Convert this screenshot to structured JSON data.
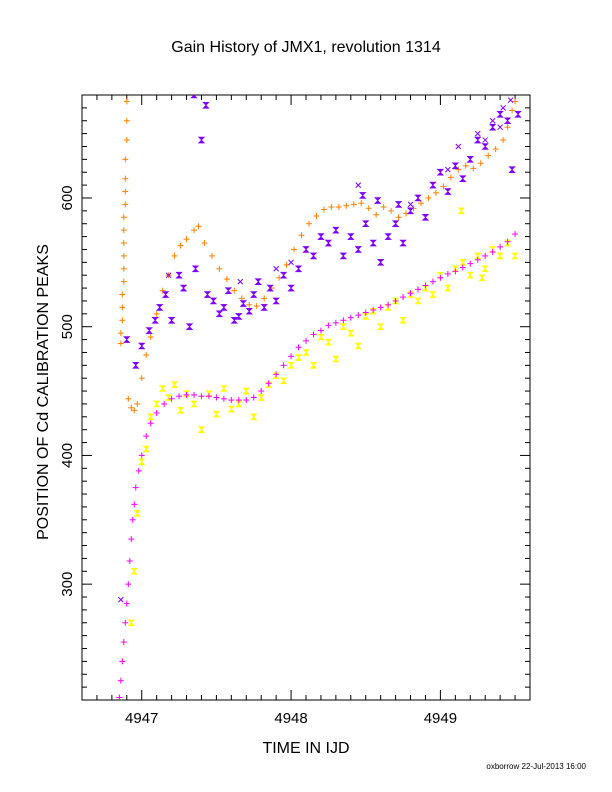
{
  "chart_data": {
    "type": "scatter",
    "title": "Gain History of JMX1, revolution 1314",
    "xlabel": "TIME IN IJD",
    "ylabel": "POSITION OF Cd CALIBRATION PEAKS",
    "xlim": [
      4946.6,
      4949.6
    ],
    "ylim": [
      210,
      680
    ],
    "xticks": [
      4947,
      4948,
      4949
    ],
    "yticks": [
      300,
      400,
      500,
      600
    ],
    "grid": false,
    "footer": "oxborrow 22-Jul-2013 16:00",
    "series": [
      {
        "marker": "plus",
        "color": "#ff8000",
        "values": [
          [
            4946.86,
            487
          ],
          [
            4946.86,
            495
          ],
          [
            4946.87,
            505
          ],
          [
            4946.87,
            515
          ],
          [
            4946.87,
            525
          ],
          [
            4946.88,
            535
          ],
          [
            4946.88,
            545
          ],
          [
            4946.88,
            555
          ],
          [
            4946.88,
            565
          ],
          [
            4946.88,
            575
          ],
          [
            4946.88,
            585
          ],
          [
            4946.89,
            595
          ],
          [
            4946.89,
            605
          ],
          [
            4946.89,
            615
          ],
          [
            4946.89,
            630
          ],
          [
            4946.9,
            645
          ],
          [
            4946.9,
            660
          ],
          [
            4946.9,
            675
          ],
          [
            4946.91,
            444
          ],
          [
            4946.93,
            437
          ],
          [
            4946.95,
            435
          ],
          [
            4946.97,
            440
          ],
          [
            4947.0,
            460
          ],
          [
            4947.03,
            478
          ],
          [
            4947.06,
            492
          ],
          [
            4947.1,
            510
          ],
          [
            4947.14,
            528
          ],
          [
            4947.18,
            540
          ],
          [
            4947.22,
            555
          ],
          [
            4947.26,
            563
          ],
          [
            4947.3,
            568
          ],
          [
            4947.35,
            575
          ],
          [
            4947.38,
            578
          ],
          [
            4947.42,
            565
          ],
          [
            4947.47,
            555
          ],
          [
            4947.52,
            545
          ],
          [
            4947.57,
            537
          ],
          [
            4947.62,
            528
          ],
          [
            4947.67,
            522
          ],
          [
            4947.72,
            517
          ],
          [
            4947.77,
            516
          ],
          [
            4947.82,
            522
          ],
          [
            4947.87,
            530
          ],
          [
            4947.92,
            538
          ],
          [
            4947.97,
            548
          ],
          [
            4948.02,
            560
          ],
          [
            4948.07,
            571
          ],
          [
            4948.12,
            580
          ],
          [
            4948.17,
            586
          ],
          [
            4948.22,
            591
          ],
          [
            4948.27,
            593
          ],
          [
            4948.32,
            593
          ],
          [
            4948.37,
            594
          ],
          [
            4948.42,
            595
          ],
          [
            4948.47,
            596
          ],
          [
            4948.52,
            592
          ],
          [
            4948.57,
            587
          ],
          [
            4948.62,
            593
          ],
          [
            4948.67,
            590
          ],
          [
            4948.72,
            585
          ],
          [
            4948.77,
            588
          ],
          [
            4948.82,
            592
          ],
          [
            4948.87,
            596
          ],
          [
            4948.92,
            600
          ],
          [
            4948.97,
            604
          ],
          [
            4949.02,
            609
          ],
          [
            4949.07,
            616
          ],
          [
            4949.12,
            622
          ],
          [
            4949.17,
            625
          ],
          [
            4949.22,
            623
          ],
          [
            4949.27,
            627
          ],
          [
            4949.32,
            633
          ],
          [
            4949.37,
            638
          ],
          [
            4949.42,
            645
          ],
          [
            4949.45,
            655
          ],
          [
            4949.48,
            668
          ],
          [
            4949.5,
            675
          ]
        ]
      },
      {
        "marker": "hourglass",
        "color": "#8000ff",
        "values": [
          [
            4946.9,
            490
          ],
          [
            4946.96,
            470
          ],
          [
            4947.0,
            485
          ],
          [
            4947.05,
            497
          ],
          [
            4947.09,
            505
          ],
          [
            4947.12,
            515
          ],
          [
            4947.16,
            525
          ],
          [
            4947.2,
            505
          ],
          [
            4947.25,
            540
          ],
          [
            4947.28,
            530
          ],
          [
            4947.32,
            500
          ],
          [
            4947.36,
            545
          ],
          [
            4947.4,
            645
          ],
          [
            4947.44,
            525
          ],
          [
            4947.48,
            520
          ],
          [
            4947.52,
            510
          ],
          [
            4947.55,
            515
          ],
          [
            4947.58,
            528
          ],
          [
            4947.62,
            505
          ],
          [
            4947.65,
            508
          ],
          [
            4947.68,
            518
          ],
          [
            4947.72,
            512
          ],
          [
            4947.75,
            525
          ],
          [
            4947.78,
            535
          ],
          [
            4947.82,
            515
          ],
          [
            4947.86,
            530
          ],
          [
            4947.9,
            520
          ],
          [
            4947.95,
            540
          ],
          [
            4948.0,
            530
          ],
          [
            4948.05,
            545
          ],
          [
            4948.1,
            560
          ],
          [
            4948.15,
            555
          ],
          [
            4948.2,
            570
          ],
          [
            4948.25,
            565
          ],
          [
            4948.3,
            575
          ],
          [
            4948.35,
            555
          ],
          [
            4948.4,
            570
          ],
          [
            4948.45,
            560
          ],
          [
            4948.5,
            580
          ],
          [
            4948.55,
            565
          ],
          [
            4948.6,
            550
          ],
          [
            4948.65,
            570
          ],
          [
            4948.7,
            580
          ],
          [
            4948.75,
            565
          ],
          [
            4948.8,
            590
          ],
          [
            4948.85,
            600
          ],
          [
            4948.9,
            585
          ],
          [
            4948.95,
            610
          ],
          [
            4949.0,
            620
          ],
          [
            4949.05,
            605
          ],
          [
            4949.1,
            625
          ],
          [
            4949.15,
            615
          ],
          [
            4949.2,
            630
          ],
          [
            4949.25,
            645
          ],
          [
            4949.3,
            640
          ],
          [
            4949.35,
            655
          ],
          [
            4949.4,
            665
          ],
          [
            4949.45,
            660
          ],
          [
            4949.48,
            622
          ],
          [
            4949.52,
            665
          ],
          [
            4947.35,
            680
          ],
          [
            4947.43,
            672
          ],
          [
            4948.48,
            602
          ],
          [
            4948.58,
            598
          ],
          [
            4948.72,
            595
          ]
        ]
      },
      {
        "marker": "x",
        "color": "#8000ff",
        "values": [
          [
            4946.86,
            288
          ],
          [
            4947.18,
            540
          ],
          [
            4947.66,
            535
          ],
          [
            4947.9,
            545
          ],
          [
            4948.0,
            550
          ],
          [
            4948.45,
            610
          ],
          [
            4948.8,
            595
          ],
          [
            4949.05,
            622
          ],
          [
            4949.12,
            640
          ],
          [
            4949.25,
            650
          ],
          [
            4949.35,
            660
          ],
          [
            4949.42,
            670
          ],
          [
            4949.47,
            676
          ],
          [
            4949.4,
            655
          ],
          [
            4949.3,
            645
          ]
        ]
      },
      {
        "marker": "hourglass",
        "color": "#ffff00",
        "values": [
          [
            4946.93,
            270
          ],
          [
            4946.95,
            310
          ],
          [
            4946.97,
            355
          ],
          [
            4947.0,
            395
          ],
          [
            4947.03,
            405
          ],
          [
            4947.06,
            430
          ],
          [
            4947.1,
            440
          ],
          [
            4947.14,
            452
          ],
          [
            4947.18,
            445
          ],
          [
            4947.22,
            455
          ],
          [
            4947.26,
            435
          ],
          [
            4947.3,
            448
          ],
          [
            4947.35,
            440
          ],
          [
            4947.4,
            420
          ],
          [
            4947.45,
            448
          ],
          [
            4947.5,
            432
          ],
          [
            4947.55,
            452
          ],
          [
            4947.6,
            436
          ],
          [
            4947.65,
            440
          ],
          [
            4947.7,
            450
          ],
          [
            4947.75,
            430
          ],
          [
            4947.8,
            445
          ],
          [
            4947.85,
            455
          ],
          [
            4947.9,
            462
          ],
          [
            4947.95,
            458
          ],
          [
            4948.0,
            470
          ],
          [
            4948.05,
            476
          ],
          [
            4948.1,
            480
          ],
          [
            4948.15,
            470
          ],
          [
            4948.2,
            492
          ],
          [
            4948.25,
            488
          ],
          [
            4948.3,
            475
          ],
          [
            4948.35,
            500
          ],
          [
            4948.4,
            495
          ],
          [
            4948.45,
            485
          ],
          [
            4948.5,
            508
          ],
          [
            4948.55,
            512
          ],
          [
            4948.6,
            500
          ],
          [
            4948.65,
            515
          ],
          [
            4948.7,
            520
          ],
          [
            4948.75,
            505
          ],
          [
            4948.8,
            525
          ],
          [
            4948.85,
            520
          ],
          [
            4948.9,
            530
          ],
          [
            4948.95,
            525
          ],
          [
            4949.0,
            540
          ],
          [
            4949.05,
            530
          ],
          [
            4949.1,
            545
          ],
          [
            4949.15,
            550
          ],
          [
            4949.2,
            540
          ],
          [
            4949.25,
            555
          ],
          [
            4949.3,
            545
          ],
          [
            4949.35,
            560
          ],
          [
            4949.4,
            555
          ],
          [
            4949.45,
            565
          ],
          [
            4949.5,
            555
          ],
          [
            4949.28,
            538
          ],
          [
            4949.14,
            590
          ]
        ]
      },
      {
        "marker": "plus",
        "color": "#ff00ff",
        "values": [
          [
            4946.85,
            212
          ],
          [
            4946.86,
            225
          ],
          [
            4946.87,
            240
          ],
          [
            4946.88,
            255
          ],
          [
            4946.89,
            270
          ],
          [
            4946.9,
            285
          ],
          [
            4946.91,
            300
          ],
          [
            4946.92,
            318
          ],
          [
            4946.93,
            335
          ],
          [
            4946.94,
            350
          ],
          [
            4946.95,
            362
          ],
          [
            4946.96,
            375
          ],
          [
            4946.98,
            388
          ],
          [
            4947.0,
            400
          ],
          [
            4947.03,
            415
          ],
          [
            4947.06,
            425
          ],
          [
            4947.1,
            433
          ],
          [
            4947.15,
            440
          ],
          [
            4947.2,
            444
          ],
          [
            4947.25,
            446
          ],
          [
            4947.3,
            447
          ],
          [
            4947.35,
            447
          ],
          [
            4947.4,
            446
          ],
          [
            4947.45,
            446
          ],
          [
            4947.5,
            445
          ],
          [
            4947.55,
            444
          ],
          [
            4947.6,
            443
          ],
          [
            4947.65,
            443
          ],
          [
            4947.7,
            443
          ],
          [
            4947.75,
            445
          ],
          [
            4947.8,
            450
          ],
          [
            4947.85,
            456
          ],
          [
            4947.9,
            463
          ],
          [
            4947.95,
            470
          ],
          [
            4948.0,
            477
          ],
          [
            4948.05,
            484
          ],
          [
            4948.1,
            489
          ],
          [
            4948.15,
            494
          ],
          [
            4948.2,
            497
          ],
          [
            4948.25,
            501
          ],
          [
            4948.3,
            503
          ],
          [
            4948.35,
            505
          ],
          [
            4948.4,
            507
          ],
          [
            4948.45,
            509
          ],
          [
            4948.5,
            511
          ],
          [
            4948.55,
            513
          ],
          [
            4948.6,
            515
          ],
          [
            4948.65,
            517
          ],
          [
            4948.7,
            520
          ],
          [
            4948.75,
            523
          ],
          [
            4948.8,
            526
          ],
          [
            4948.85,
            529
          ],
          [
            4948.9,
            532
          ],
          [
            4948.95,
            535
          ],
          [
            4949.0,
            538
          ],
          [
            4949.05,
            541
          ],
          [
            4949.1,
            543
          ],
          [
            4949.15,
            546
          ],
          [
            4949.2,
            549
          ],
          [
            4949.25,
            552
          ],
          [
            4949.3,
            555
          ],
          [
            4949.35,
            558
          ],
          [
            4949.4,
            562
          ],
          [
            4949.45,
            566
          ],
          [
            4949.5,
            572
          ]
        ]
      }
    ]
  }
}
